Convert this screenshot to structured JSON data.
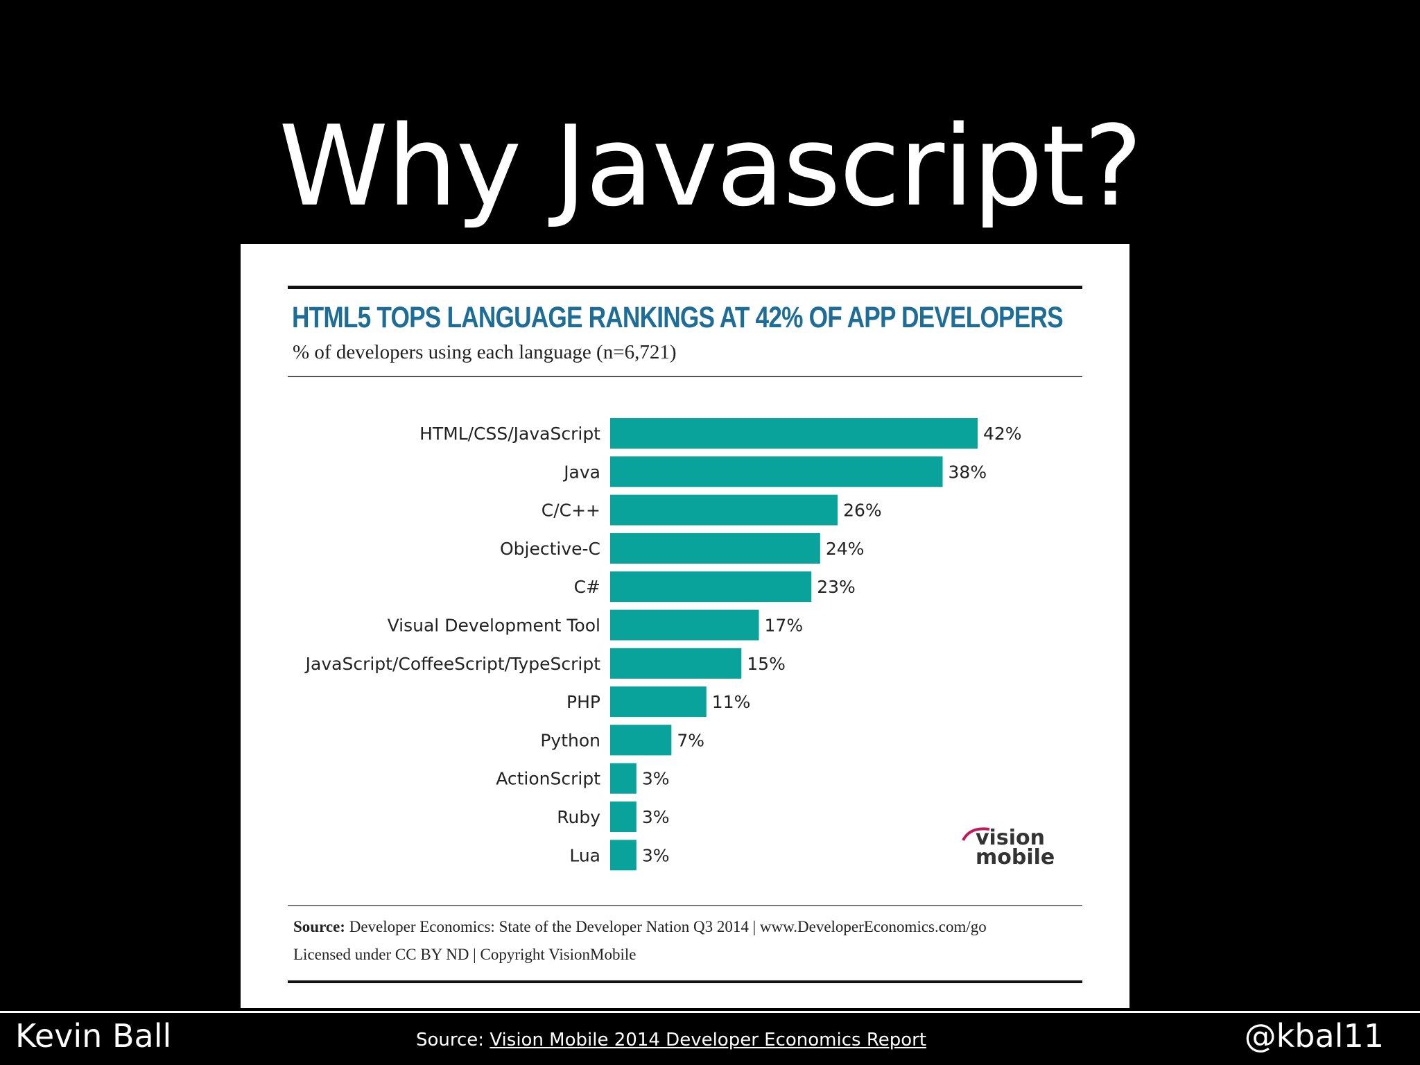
{
  "slide": {
    "title": "Why Javascript?",
    "author": "Kevin Ball",
    "handle": "@kbal11",
    "source_prefix": "Source: ",
    "source_link_text": "Vision Mobile 2014 Developer Economics Report"
  },
  "chart_card": {
    "source_label": "Source:",
    "source_text": " Developer Economics: State of the Developer Nation Q3 2014 | www.DeveloperEconomics.com/go",
    "license_text": "Licensed under CC BY ND | Copyright VisionMobile",
    "logo_text_line1": "vision",
    "logo_text_line2": "mobile"
  },
  "colors": {
    "bar": "#0aa39c",
    "heading": "#1e6d96",
    "background": "#000000"
  },
  "chart_data": {
    "type": "bar",
    "orientation": "horizontal",
    "title": "HTML5 TOPS LANGUAGE RANKINGS AT 42% OF APP DEVELOPERS",
    "subtitle": "% of developers using each language (n=6,721)",
    "categories": [
      "HTML/CSS/JavaScript",
      "Java",
      "C/C++",
      "Objective-C",
      "C#",
      "Visual Development Tool",
      "JavaScript/CoffeeScript/TypeScript",
      "PHP",
      "Python",
      "ActionScript",
      "Ruby",
      "Lua"
    ],
    "values": [
      42,
      38,
      26,
      24,
      23,
      17,
      15,
      11,
      7,
      3,
      3,
      3
    ],
    "value_labels": [
      "42%",
      "38%",
      "26%",
      "24%",
      "23%",
      "17%",
      "15%",
      "11%",
      "7%",
      "3%",
      "3%",
      "3%"
    ],
    "xlim": [
      0,
      42
    ],
    "grid": false,
    "legend": "none"
  }
}
